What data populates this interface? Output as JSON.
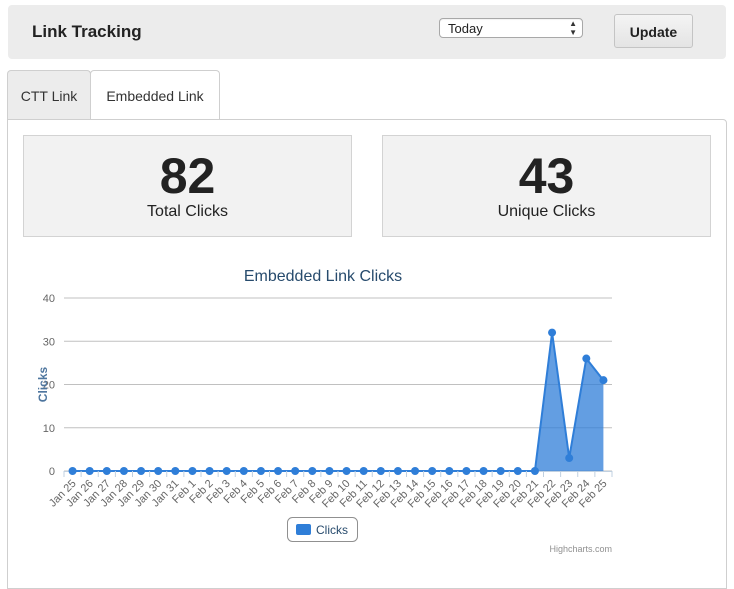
{
  "header": {
    "title": "Link Tracking",
    "range_select_value": "Today",
    "update_label": "Update"
  },
  "tabs": [
    {
      "label": "CTT Link",
      "active": false
    },
    {
      "label": "Embedded Link",
      "active": true
    }
  ],
  "stats": {
    "total_clicks": {
      "value": "82",
      "label": "Total Clicks"
    },
    "unique_clicks": {
      "value": "43",
      "label": "Unique Clicks"
    }
  },
  "chart_data": {
    "type": "area",
    "title": "Embedded Link Clicks",
    "ylabel": "Clicks",
    "xlabel": "",
    "ylim": [
      0,
      40
    ],
    "yticks": [
      0,
      10,
      20,
      30,
      40
    ],
    "grid": true,
    "legend": "bottom-center",
    "credit": "Highcharts.com",
    "categories": [
      "Jan 25",
      "Jan 26",
      "Jan 27",
      "Jan 28",
      "Jan 29",
      "Jan 30",
      "Jan 31",
      "Feb 1",
      "Feb 2",
      "Feb 3",
      "Feb 4",
      "Feb 5",
      "Feb 6",
      "Feb 7",
      "Feb 8",
      "Feb 9",
      "Feb 10",
      "Feb 11",
      "Feb 12",
      "Feb 13",
      "Feb 14",
      "Feb 15",
      "Feb 16",
      "Feb 17",
      "Feb 18",
      "Feb 19",
      "Feb 20",
      "Feb 21",
      "Feb 22",
      "Feb 23",
      "Feb 24",
      "Feb 25"
    ],
    "series": [
      {
        "name": "Clicks",
        "color": "#2f7ed8",
        "values": [
          0,
          0,
          0,
          0,
          0,
          0,
          0,
          0,
          0,
          0,
          0,
          0,
          0,
          0,
          0,
          0,
          0,
          0,
          0,
          0,
          0,
          0,
          0,
          0,
          0,
          0,
          0,
          0,
          32,
          3,
          26,
          21
        ]
      }
    ]
  }
}
